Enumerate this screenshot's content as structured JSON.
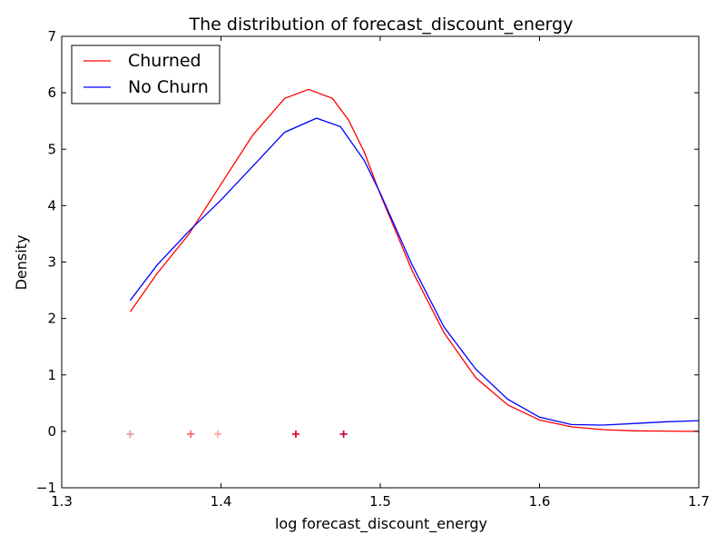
{
  "chart_data": {
    "type": "line",
    "title": "The distribution of forecast_discount_energy",
    "xlabel": "log forecast_discount_energy",
    "ylabel": "Density",
    "xlim": [
      1.3,
      1.7
    ],
    "ylim": [
      -1,
      7
    ],
    "x_ticks": [
      1.3,
      1.4,
      1.5,
      1.6,
      1.7
    ],
    "x_tick_labels": [
      "1.3",
      "1.4",
      "1.5",
      "1.6",
      "1.7"
    ],
    "y_ticks": [
      -1,
      0,
      1,
      2,
      3,
      4,
      5,
      6,
      7
    ],
    "y_tick_labels": [
      "−1",
      "0",
      "1",
      "2",
      "3",
      "4",
      "5",
      "6",
      "7"
    ],
    "grid": false,
    "legend_position": "top-left",
    "series": [
      {
        "name": "Churned",
        "color": "#ff0000",
        "x": [
          1.343,
          1.36,
          1.38,
          1.4,
          1.42,
          1.44,
          1.455,
          1.47,
          1.48,
          1.49,
          1.5,
          1.52,
          1.54,
          1.56,
          1.58,
          1.6,
          1.62,
          1.64,
          1.66,
          1.68,
          1.7
        ],
        "y": [
          2.12,
          2.8,
          3.5,
          4.38,
          5.25,
          5.9,
          6.06,
          5.9,
          5.52,
          4.95,
          4.2,
          2.85,
          1.75,
          0.95,
          0.47,
          0.2,
          0.08,
          0.03,
          0.01,
          0.005,
          0.0
        ]
      },
      {
        "name": "No Churn",
        "color": "#0000ff",
        "x": [
          1.343,
          1.36,
          1.38,
          1.4,
          1.42,
          1.44,
          1.46,
          1.475,
          1.49,
          1.5,
          1.52,
          1.54,
          1.56,
          1.58,
          1.6,
          1.62,
          1.64,
          1.66,
          1.68,
          1.7
        ],
        "y": [
          2.32,
          2.95,
          3.55,
          4.1,
          4.7,
          5.3,
          5.55,
          5.4,
          4.8,
          4.22,
          2.95,
          1.85,
          1.1,
          0.57,
          0.25,
          0.12,
          0.11,
          0.14,
          0.17,
          0.19
        ]
      }
    ],
    "rug": [
      {
        "x": 1.343,
        "series": "No Churn",
        "color": "#6f6fd6"
      },
      {
        "x": 1.343,
        "series": "Churned",
        "color": "#ff9a9a"
      },
      {
        "x": 1.381,
        "series": "No Churn",
        "color": "#5b3fb0"
      },
      {
        "x": 1.381,
        "series": "Churned",
        "color": "#ff6a6a"
      },
      {
        "x": 1.398,
        "series": "Churned",
        "color": "#ff9a9a"
      },
      {
        "x": 1.447,
        "series": "No Churn",
        "color": "#8a1f6a"
      },
      {
        "x": 1.447,
        "series": "Churned",
        "color": "#e8002a"
      },
      {
        "x": 1.477,
        "series": "No Churn",
        "color": "#6a1f7a"
      },
      {
        "x": 1.477,
        "series": "Churned",
        "color": "#d0003a"
      }
    ]
  }
}
